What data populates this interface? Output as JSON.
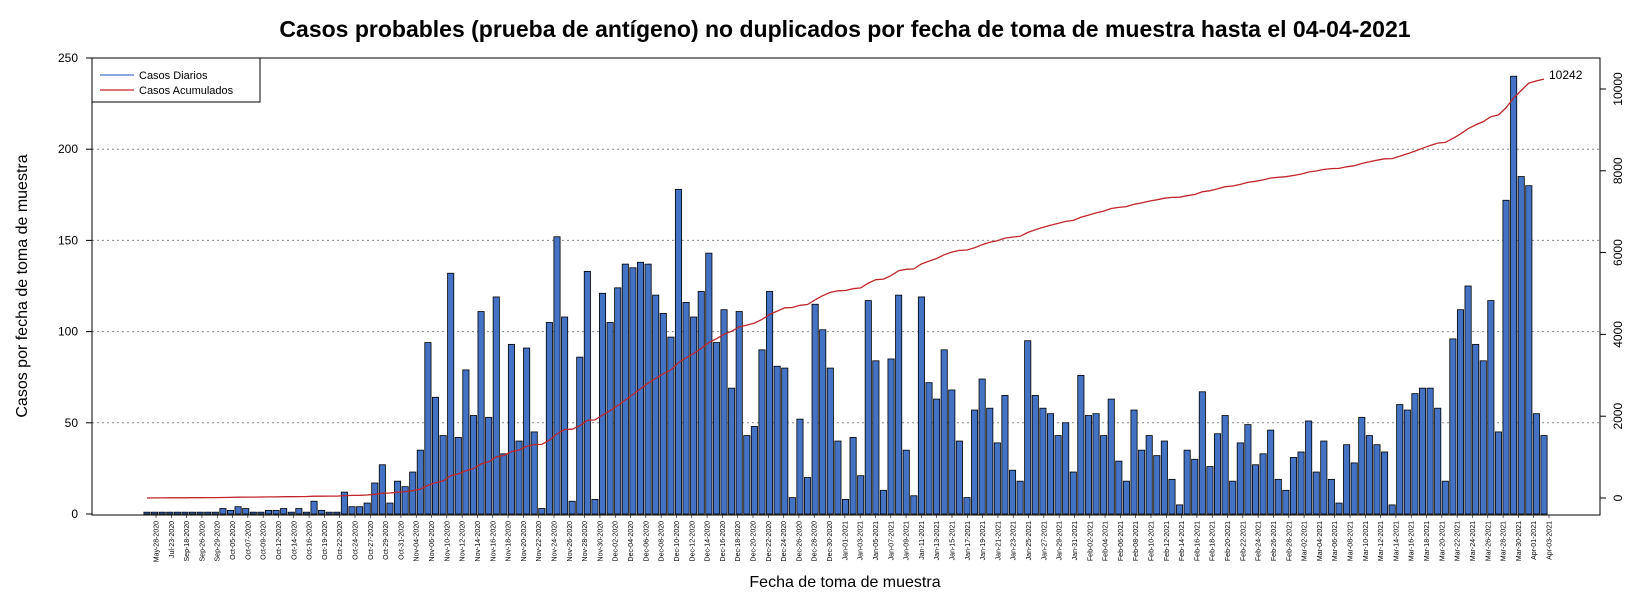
{
  "chart_data": {
    "type": "bar",
    "title": "Casos probables (prueba de antígeno) no duplicados por fecha de toma de muestra hasta el 04-04-2021",
    "xlabel": "Fecha de toma de muestra",
    "ylabel": "Casos por fecha de toma de muestra",
    "ylim": [
      0,
      250
    ],
    "y_ticks": [
      0,
      50,
      100,
      150,
      200,
      250
    ],
    "y2lim": [
      -500,
      10500
    ],
    "y2_ticks": [
      0,
      2000,
      4000,
      6000,
      8000,
      10000
    ],
    "grid": "horizontal-dotted",
    "legend_position": "top-left",
    "legend": [
      "Casos Diarios",
      "Casos Acumulados"
    ],
    "colors": {
      "bars": "#4472C4",
      "bar_border": "#000000",
      "cumulative_line": "#C0262C",
      "grid": "#888888"
    },
    "x_tick_labels": [
      "May-28-2020",
      "Jul-23-2020",
      "Sep-18-2020",
      "Sep-26-2020",
      "Sep-29-2020",
      "Oct-05-2020",
      "Oct-07-2020",
      "Oct-09-2020",
      "Oct-12-2020",
      "Oct-14-2020",
      "Oct-16-2020",
      "Oct-19-2020",
      "Oct-22-2020",
      "Oct-24-2020",
      "Oct-27-2020",
      "Oct-29-2020",
      "Oct-31-2020",
      "Nov-04-2020",
      "Nov-06-2020",
      "Nov-10-2020",
      "Nov-12-2020",
      "Nov-14-2020",
      "Nov-16-2020",
      "Nov-18-2020",
      "Nov-20-2020",
      "Nov-22-2020",
      "Nov-24-2020",
      "Nov-26-2020",
      "Nov-28-2020",
      "Nov-30-2020",
      "Dec-02-2020",
      "Dec-04-2020",
      "Dec-06-2020",
      "Dec-08-2020",
      "Dec-10-2020",
      "Dec-12-2020",
      "Dec-14-2020",
      "Dec-16-2020",
      "Dec-18-2020",
      "Dec-20-2020",
      "Dec-22-2020",
      "Dec-24-2020",
      "Dec-26-2020",
      "Dec-28-2020",
      "Dec-30-2020",
      "Jan-01-2021",
      "Jan-03-2021",
      "Jan-05-2021",
      "Jan-07-2021",
      "Jan-09-2021",
      "Jan-11-2021",
      "Jan-13-2021",
      "Jan-15-2021",
      "Jan-17-2021",
      "Jan-19-2021",
      "Jan-21-2021",
      "Jan-23-2021",
      "Jan-25-2021",
      "Jan-27-2021",
      "Jan-29-2021",
      "Jan-31-2021",
      "Feb-02-2021",
      "Feb-04-2021",
      "Feb-06-2021",
      "Feb-08-2021",
      "Feb-10-2021",
      "Feb-12-2021",
      "Feb-14-2021",
      "Feb-16-2021",
      "Feb-18-2021",
      "Feb-20-2021",
      "Feb-22-2021",
      "Feb-24-2021",
      "Feb-26-2021",
      "Feb-28-2021",
      "Mar-02-2021",
      "Mar-04-2021",
      "Mar-06-2021",
      "Mar-08-2021",
      "Mar-10-2021",
      "Mar-12-2021",
      "Mar-14-2021",
      "Mar-16-2021",
      "Mar-18-2021",
      "Mar-20-2021",
      "Mar-22-2021",
      "Mar-24-2021",
      "Mar-26-2021",
      "Mar-28-2021",
      "Mar-30-2021",
      "Apr-01-2021",
      "Apr-03-2021"
    ],
    "series": [
      {
        "name": "Casos Diarios",
        "axis": "left",
        "values": [
          1,
          1,
          1,
          1,
          1,
          1,
          1,
          1,
          1,
          1,
          3,
          2,
          4,
          3,
          1,
          1,
          2,
          2,
          3,
          1,
          3,
          1,
          7,
          2,
          1,
          1,
          12,
          4,
          4,
          6,
          17,
          27,
          6,
          18,
          15,
          23,
          35,
          94,
          64,
          43,
          132,
          42,
          79,
          54,
          111,
          53,
          119,
          33,
          93,
          40,
          91,
          45,
          3,
          105,
          152,
          108,
          7,
          86,
          133,
          8,
          121,
          105,
          124,
          137,
          135,
          138,
          137,
          120,
          110,
          97,
          178,
          116,
          108,
          122,
          143,
          94,
          112,
          69,
          111,
          43,
          48,
          90,
          122,
          81,
          80,
          9,
          52,
          20,
          115,
          101,
          80,
          40,
          8,
          42,
          21,
          117,
          84,
          13,
          85,
          120,
          35,
          10,
          119,
          72,
          63,
          90,
          68,
          40,
          9,
          57,
          74,
          58,
          39,
          65,
          24,
          18,
          95,
          65,
          58,
          55,
          43,
          50,
          23,
          76,
          54,
          55,
          43,
          63,
          29,
          18,
          57,
          35,
          43,
          32,
          40,
          19,
          5,
          35,
          30,
          67,
          26,
          44,
          54,
          18,
          39,
          49,
          27,
          33,
          46,
          19,
          13,
          31,
          34,
          51,
          23,
          40,
          19,
          6,
          38,
          28,
          53,
          43,
          38,
          34,
          5,
          60,
          57,
          66,
          69,
          69,
          58,
          18,
          96,
          112,
          125,
          93,
          84,
          117,
          45,
          172,
          240,
          185,
          180,
          55,
          43
        ]
      },
      {
        "name": "Casos Acumulados",
        "axis": "right",
        "end_value": 10242,
        "end_label": "10242"
      }
    ]
  }
}
